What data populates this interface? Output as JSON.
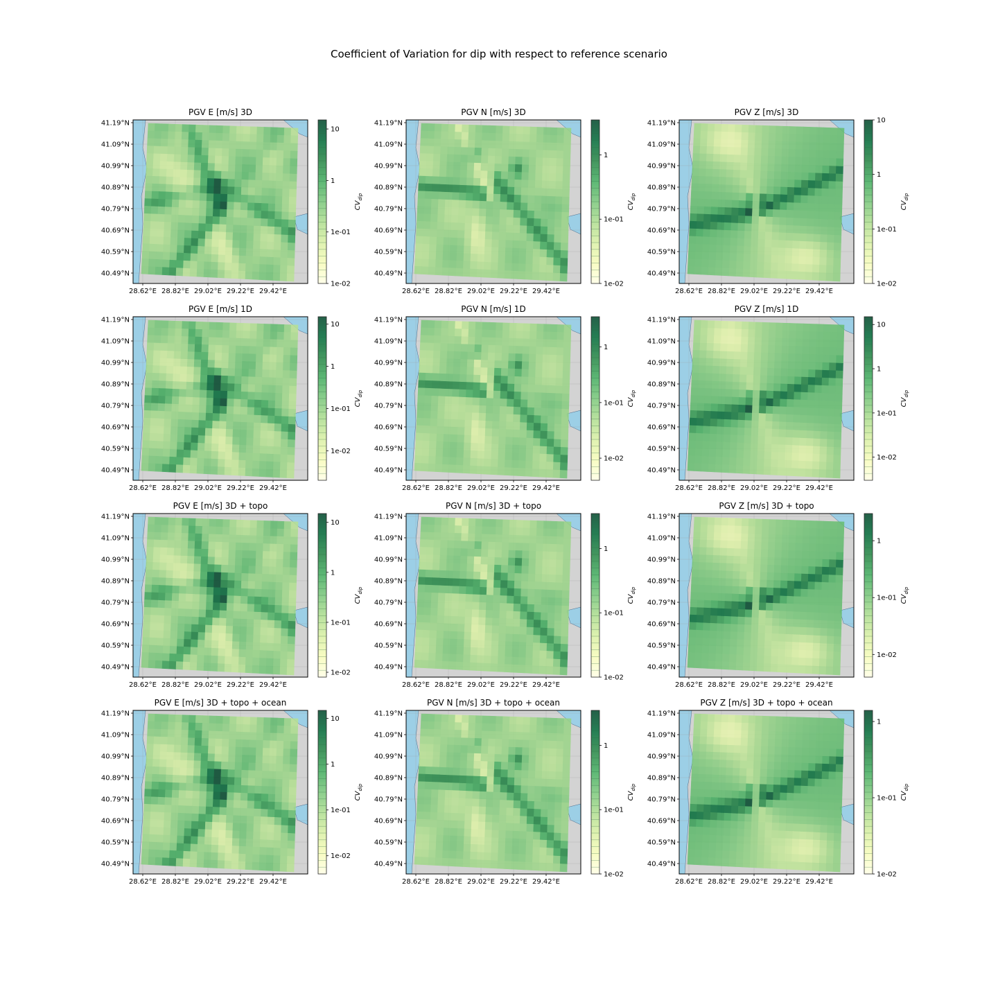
{
  "figure": {
    "title": "Coefficient of Variation for dip with respect to reference scenario"
  },
  "colors": {
    "land": "#d3d3d3",
    "ocean": "#9ccfe6",
    "cmap": [
      "#ffffe5",
      "#f7fcb9",
      "#d9f0a3",
      "#addd8e",
      "#78c679",
      "#41ab5d",
      "#238443",
      "#006837",
      "#004529"
    ]
  },
  "chart_data": {
    "type": "heatmap",
    "x_tick_labels": [
      "28.62°E",
      "28.82°E",
      "29.02°E",
      "29.22°E",
      "29.42°E"
    ],
    "y_tick_labels": [
      "41.19°N",
      "41.09°N",
      "40.99°N",
      "40.89°N",
      "40.79°N",
      "40.69°N",
      "40.59°N",
      "40.49°N"
    ],
    "colorbar_label": "CV",
    "colorbar_label_sub": "dip",
    "colorbar_scale": "log",
    "panels": [
      {
        "title": "PGV E [m/s] 3D",
        "style": "E",
        "cb_range": [
          0.01,
          15
        ],
        "cb_ticks": [
          "10",
          "1",
          "1e-01",
          "1e-02"
        ]
      },
      {
        "title": "PGV N [m/s] 3D",
        "style": "N",
        "cb_range": [
          0.01,
          3.5
        ],
        "cb_ticks": [
          "1",
          "1e-01",
          "1e-02"
        ]
      },
      {
        "title": "PGV Z [m/s] 3D",
        "style": "Z",
        "cb_range": [
          0.01,
          10
        ],
        "cb_ticks": [
          "10",
          "1",
          "1e-01",
          "1e-02"
        ]
      },
      {
        "title": "PGV E [m/s] 1D",
        "style": "E",
        "cb_range": [
          0.002,
          15
        ],
        "cb_ticks": [
          "10",
          "1",
          "1e-01",
          "1e-02"
        ]
      },
      {
        "title": "PGV N [m/s] 1D",
        "style": "N",
        "cb_range": [
          0.004,
          3.5
        ],
        "cb_ticks": [
          "1",
          "1e-01",
          "1e-02"
        ]
      },
      {
        "title": "PGV Z [m/s] 1D",
        "style": "Z",
        "cb_range": [
          0.003,
          15
        ],
        "cb_ticks": [
          "10",
          "1",
          "1e-01",
          "1e-02"
        ]
      },
      {
        "title": "PGV E [m/s] 3D + topo",
        "style": "E",
        "cb_range": [
          0.008,
          15
        ],
        "cb_ticks": [
          "10",
          "1",
          "1e-01",
          "1e-02"
        ]
      },
      {
        "title": "PGV N [m/s] 3D + topo",
        "style": "N",
        "cb_range": [
          0.01,
          3.5
        ],
        "cb_ticks": [
          "1",
          "1e-01",
          "1e-02"
        ]
      },
      {
        "title": "PGV Z [m/s] 3D + topo",
        "style": "Z",
        "cb_range": [
          0.004,
          3
        ],
        "cb_ticks": [
          "1",
          "1e-01",
          "1e-02"
        ]
      },
      {
        "title": "PGV E [m/s] 3D + topo + ocean",
        "style": "E",
        "cb_range": [
          0.004,
          15
        ],
        "cb_ticks": [
          "10",
          "1",
          "1e-01",
          "1e-02"
        ]
      },
      {
        "title": "PGV N [m/s] 3D + topo + ocean",
        "style": "N",
        "cb_range": [
          0.01,
          3.5
        ],
        "cb_ticks": [
          "1",
          "1e-01",
          "1e-02"
        ]
      },
      {
        "title": "PGV Z [m/s] 3D + topo + ocean",
        "style": "Z",
        "cb_range": [
          0.01,
          1.4
        ],
        "cb_ticks": [
          "1",
          "1e-01",
          "1e-02"
        ]
      }
    ]
  }
}
